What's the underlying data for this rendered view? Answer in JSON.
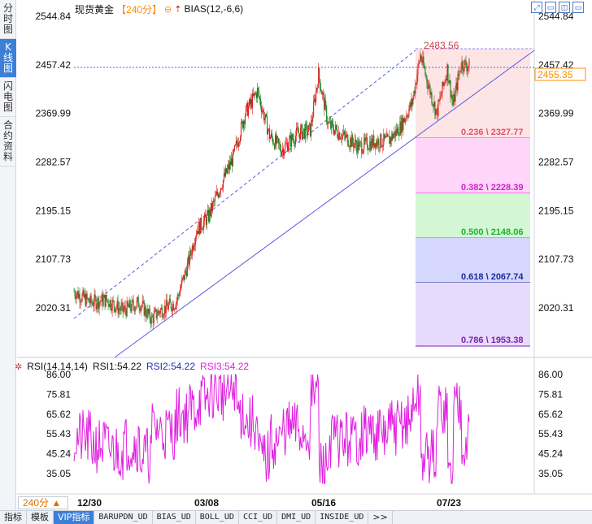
{
  "left_tabs": [
    {
      "label": "分时图",
      "active": false
    },
    {
      "label": "K线图",
      "active": true
    },
    {
      "label": "闪电图",
      "active": false
    },
    {
      "label": "合约资料",
      "active": false
    }
  ],
  "header": {
    "symbol": "现货黄金",
    "period": "【240分】",
    "indicator": "BIAS(12,-6,6)"
  },
  "window_controls": [
    "restore-icon",
    "window-icon",
    "chart-icon",
    "window-icon"
  ],
  "price_axis": {
    "labels": [
      "2544.84",
      "2457.42",
      "2369.99",
      "2282.57",
      "2195.15",
      "2107.73",
      "2020.31"
    ],
    "current_price": "2455.35",
    "current_price_color": "#ff8c00"
  },
  "annotations": {
    "high_label": "2483.56"
  },
  "fibonacci": [
    {
      "label": "0.236 \\ 2327.77",
      "color": "#e8506a",
      "fill": "#fde5e5"
    },
    {
      "label": "0.382 \\ 2228.39",
      "color": "#d020d0",
      "fill": "#ffd5fa"
    },
    {
      "label": "0.500 \\ 2148.06",
      "color": "#20b030",
      "fill": "#d3f7d3"
    },
    {
      "label": "0.618 \\ 2067.74",
      "color": "#1a2a9a",
      "fill": "#d5d8fc"
    },
    {
      "label": "0.786 \\ 1953.38",
      "color": "#7a20b0",
      "fill": "#e8dafc"
    }
  ],
  "rsi": {
    "title": "RSI(14,14,14)",
    "rsi1": "RSI1:54.22",
    "rsi2": "RSI2:54.22",
    "rsi3": "RSI3:54.22",
    "axis_labels": [
      "86.00",
      "75.81",
      "65.62",
      "55.43",
      "45.24",
      "35.05"
    ]
  },
  "x_axis": {
    "period_badge": "240分 ▲",
    "dates": [
      "12/30",
      "03/08",
      "05/16",
      "07/23"
    ]
  },
  "bottom_tabs": [
    {
      "label": "指标",
      "active": false,
      "mono": false
    },
    {
      "label": "模板",
      "active": false,
      "mono": false
    },
    {
      "label": "VIP指标",
      "active": true,
      "mono": false
    },
    {
      "label": "BARUPDN_UD",
      "active": false,
      "mono": true
    },
    {
      "label": "BIAS_UD",
      "active": false,
      "mono": true
    },
    {
      "label": "BOLL_UD",
      "active": false,
      "mono": true
    },
    {
      "label": "CCI_UD",
      "active": false,
      "mono": true
    },
    {
      "label": "DMI_UD",
      "active": false,
      "mono": true
    },
    {
      "label": "INSIDE_UD",
      "active": false,
      "mono": true
    },
    {
      "label": ">>",
      "active": false,
      "mono": false
    }
  ],
  "chart_data": {
    "type": "candlestick",
    "ylim": [
      1953,
      2545
    ],
    "rsi_ylim": [
      30,
      88
    ],
    "price_path": [
      {
        "t": 0,
        "v": 2050
      },
      {
        "t": 20,
        "v": 2030
      },
      {
        "t": 40,
        "v": 2035
      },
      {
        "t": 60,
        "v": 2015
      },
      {
        "t": 80,
        "v": 2030
      },
      {
        "t": 95,
        "v": 2000
      },
      {
        "t": 105,
        "v": 2015
      },
      {
        "t": 125,
        "v": 2030
      },
      {
        "t": 140,
        "v": 2100
      },
      {
        "t": 150,
        "v": 2160
      },
      {
        "t": 165,
        "v": 2185
      },
      {
        "t": 180,
        "v": 2240
      },
      {
        "t": 195,
        "v": 2290
      },
      {
        "t": 210,
        "v": 2370
      },
      {
        "t": 225,
        "v": 2410
      },
      {
        "t": 240,
        "v": 2330
      },
      {
        "t": 255,
        "v": 2305
      },
      {
        "t": 275,
        "v": 2335
      },
      {
        "t": 290,
        "v": 2340
      },
      {
        "t": 300,
        "v": 2440
      },
      {
        "t": 312,
        "v": 2350
      },
      {
        "t": 330,
        "v": 2330
      },
      {
        "t": 350,
        "v": 2310
      },
      {
        "t": 370,
        "v": 2320
      },
      {
        "t": 385,
        "v": 2320
      },
      {
        "t": 400,
        "v": 2345
      },
      {
        "t": 415,
        "v": 2390
      },
      {
        "t": 425,
        "v": 2475
      },
      {
        "t": 435,
        "v": 2420
      },
      {
        "t": 445,
        "v": 2370
      },
      {
        "t": 458,
        "v": 2450
      },
      {
        "t": 465,
        "v": 2385
      },
      {
        "t": 475,
        "v": 2460
      },
      {
        "t": 485,
        "v": 2455
      }
    ],
    "high": 2483.56,
    "fib_levels": [
      2327.77,
      2228.39,
      2148.06,
      2067.74,
      1953.38
    ]
  }
}
